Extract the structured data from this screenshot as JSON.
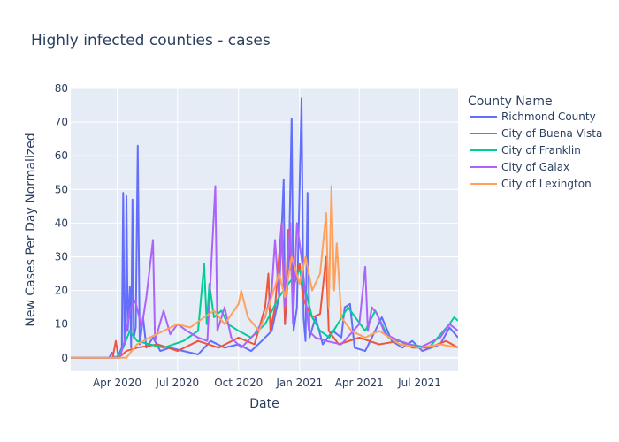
{
  "chart_data": {
    "type": "line",
    "title": "Highly infected counties - cases",
    "xlabel": "Date",
    "ylabel": "New Cases Per Day Normalized",
    "x_range": [
      "2020-01-22",
      "2021-08-28"
    ],
    "ylim": [
      -4,
      80
    ],
    "y_ticks": [
      0,
      10,
      20,
      30,
      40,
      50,
      60,
      70,
      80
    ],
    "x_ticks": [
      {
        "date": "2020-04-01",
        "label": "Apr 2020"
      },
      {
        "date": "2020-07-01",
        "label": "Jul 2020"
      },
      {
        "date": "2020-10-01",
        "label": "Oct 2020"
      },
      {
        "date": "2021-01-01",
        "label": "Jan 2021"
      },
      {
        "date": "2021-04-01",
        "label": "Apr 2021"
      },
      {
        "date": "2021-07-01",
        "label": "Jul 2021"
      }
    ],
    "grid": true,
    "legend": {
      "title": "County Name",
      "placement": "right"
    },
    "series": [
      {
        "name": "Richmond County",
        "color": "#636efa",
        "points": [
          [
            "2020-01-22",
            0
          ],
          [
            "2020-03-20",
            0
          ],
          [
            "2020-03-24",
            1.5
          ],
          [
            "2020-03-28",
            0
          ],
          [
            "2020-04-02",
            0.5
          ],
          [
            "2020-04-08",
            3
          ],
          [
            "2020-04-10",
            49
          ],
          [
            "2020-04-12",
            4
          ],
          [
            "2020-04-14",
            15
          ],
          [
            "2020-04-15",
            48
          ],
          [
            "2020-04-17",
            8
          ],
          [
            "2020-04-20",
            21
          ],
          [
            "2020-04-22",
            3
          ],
          [
            "2020-04-24",
            47
          ],
          [
            "2020-04-26",
            6
          ],
          [
            "2020-04-29",
            9
          ],
          [
            "2020-05-02",
            63
          ],
          [
            "2020-05-05",
            4
          ],
          [
            "2020-05-10",
            12
          ],
          [
            "2020-05-15",
            3
          ],
          [
            "2020-05-25",
            6
          ],
          [
            "2020-06-05",
            2
          ],
          [
            "2020-06-20",
            3
          ],
          [
            "2020-07-10",
            2
          ],
          [
            "2020-08-01",
            1
          ],
          [
            "2020-08-20",
            5
          ],
          [
            "2020-09-10",
            3
          ],
          [
            "2020-10-01",
            4
          ],
          [
            "2020-10-20",
            2
          ],
          [
            "2020-11-05",
            5
          ],
          [
            "2020-11-20",
            8
          ],
          [
            "2020-12-01",
            18
          ],
          [
            "2020-12-08",
            53
          ],
          [
            "2020-12-10",
            10
          ],
          [
            "2020-12-16",
            30
          ],
          [
            "2020-12-20",
            71
          ],
          [
            "2020-12-23",
            8
          ],
          [
            "2020-12-28",
            15
          ],
          [
            "2021-01-04",
            77
          ],
          [
            "2021-01-07",
            12
          ],
          [
            "2021-01-10",
            5
          ],
          [
            "2021-01-13",
            49
          ],
          [
            "2021-01-16",
            6
          ],
          [
            "2021-01-25",
            12
          ],
          [
            "2021-02-05",
            4
          ],
          [
            "2021-02-20",
            8
          ],
          [
            "2021-03-05",
            6
          ],
          [
            "2021-03-10",
            15
          ],
          [
            "2021-03-18",
            16
          ],
          [
            "2021-03-25",
            3
          ],
          [
            "2021-04-10",
            2
          ],
          [
            "2021-05-05",
            12
          ],
          [
            "2021-05-20",
            5
          ],
          [
            "2021-06-05",
            3
          ],
          [
            "2021-06-20",
            5
          ],
          [
            "2021-07-05",
            2
          ],
          [
            "2021-08-01",
            4
          ],
          [
            "2021-08-15",
            9
          ],
          [
            "2021-08-28",
            6
          ]
        ]
      },
      {
        "name": "City of Buena Vista",
        "color": "#ef553b",
        "points": [
          [
            "2020-01-22",
            0
          ],
          [
            "2020-03-25",
            0
          ],
          [
            "2020-03-30",
            5
          ],
          [
            "2020-04-03",
            0
          ],
          [
            "2020-04-15",
            2
          ],
          [
            "2020-05-01",
            3
          ],
          [
            "2020-06-01",
            4
          ],
          [
            "2020-07-01",
            2
          ],
          [
            "2020-08-01",
            5
          ],
          [
            "2020-09-01",
            3
          ],
          [
            "2020-10-01",
            6
          ],
          [
            "2020-10-25",
            4
          ],
          [
            "2020-11-10",
            15
          ],
          [
            "2020-11-15",
            25
          ],
          [
            "2020-11-18",
            8
          ],
          [
            "2020-11-25",
            15
          ],
          [
            "2020-12-05",
            40
          ],
          [
            "2020-12-10",
            10
          ],
          [
            "2020-12-15",
            38
          ],
          [
            "2020-12-22",
            20
          ],
          [
            "2021-01-01",
            28
          ],
          [
            "2021-01-06",
            18
          ],
          [
            "2021-01-12",
            15
          ],
          [
            "2021-01-20",
            12
          ],
          [
            "2021-02-01",
            13
          ],
          [
            "2021-02-10",
            30
          ],
          [
            "2021-02-14",
            8
          ],
          [
            "2021-03-01",
            4
          ],
          [
            "2021-04-01",
            6
          ],
          [
            "2021-05-01",
            4
          ],
          [
            "2021-06-01",
            5
          ],
          [
            "2021-06-20",
            3
          ],
          [
            "2021-07-15",
            3
          ],
          [
            "2021-08-10",
            5
          ],
          [
            "2021-08-28",
            3
          ]
        ]
      },
      {
        "name": "City of Franklin",
        "color": "#00cc96",
        "points": [
          [
            "2020-01-22",
            0
          ],
          [
            "2020-04-01",
            0
          ],
          [
            "2020-04-10",
            3
          ],
          [
            "2020-04-20",
            8
          ],
          [
            "2020-05-01",
            5
          ],
          [
            "2020-05-20",
            4
          ],
          [
            "2020-06-10",
            3
          ],
          [
            "2020-07-10",
            5
          ],
          [
            "2020-08-01",
            8
          ],
          [
            "2020-08-10",
            28
          ],
          [
            "2020-08-14",
            10
          ],
          [
            "2020-08-18",
            22
          ],
          [
            "2020-08-25",
            12
          ],
          [
            "2020-09-05",
            14
          ],
          [
            "2020-09-15",
            10
          ],
          [
            "2020-10-01",
            8
          ],
          [
            "2020-10-20",
            6
          ],
          [
            "2020-11-10",
            10
          ],
          [
            "2020-12-01",
            18
          ],
          [
            "2020-12-15",
            22
          ],
          [
            "2021-01-01",
            26
          ],
          [
            "2021-01-10",
            20
          ],
          [
            "2021-01-20",
            12
          ],
          [
            "2021-02-01",
            8
          ],
          [
            "2021-02-15",
            6
          ],
          [
            "2021-03-15",
            15
          ],
          [
            "2021-04-10",
            8
          ],
          [
            "2021-04-25",
            14
          ],
          [
            "2021-05-15",
            6
          ],
          [
            "2021-06-15",
            4
          ],
          [
            "2021-07-15",
            3
          ],
          [
            "2021-08-15",
            10
          ],
          [
            "2021-08-22",
            12
          ],
          [
            "2021-08-28",
            11
          ]
        ]
      },
      {
        "name": "City of Galax",
        "color": "#ab63fa",
        "points": [
          [
            "2020-01-22",
            0
          ],
          [
            "2020-04-05",
            0
          ],
          [
            "2020-04-12",
            5
          ],
          [
            "2020-04-20",
            14
          ],
          [
            "2020-04-28",
            17
          ],
          [
            "2020-05-08",
            9
          ],
          [
            "2020-05-15",
            18
          ],
          [
            "2020-05-25",
            35
          ],
          [
            "2020-05-28",
            5
          ],
          [
            "2020-06-10",
            14
          ],
          [
            "2020-06-20",
            7
          ],
          [
            "2020-07-01",
            10
          ],
          [
            "2020-07-15",
            8
          ],
          [
            "2020-08-01",
            6
          ],
          [
            "2020-08-15",
            5
          ],
          [
            "2020-08-27",
            51
          ],
          [
            "2020-08-30",
            8
          ],
          [
            "2020-09-10",
            15
          ],
          [
            "2020-09-20",
            6
          ],
          [
            "2020-10-05",
            3
          ],
          [
            "2020-10-25",
            7
          ],
          [
            "2020-11-10",
            12
          ],
          [
            "2020-11-20",
            20
          ],
          [
            "2020-11-25",
            35
          ],
          [
            "2020-12-01",
            18
          ],
          [
            "2020-12-05",
            40
          ],
          [
            "2020-12-10",
            15
          ],
          [
            "2020-12-18",
            40
          ],
          [
            "2020-12-22",
            10
          ],
          [
            "2020-12-28",
            40
          ],
          [
            "2021-01-05",
            28
          ],
          [
            "2021-01-15",
            8
          ],
          [
            "2021-01-25",
            6
          ],
          [
            "2021-02-10",
            5
          ],
          [
            "2021-03-05",
            4
          ],
          [
            "2021-04-01",
            10
          ],
          [
            "2021-04-10",
            27
          ],
          [
            "2021-04-14",
            8
          ],
          [
            "2021-04-20",
            15
          ],
          [
            "2021-04-28",
            13
          ],
          [
            "2021-05-10",
            7
          ],
          [
            "2021-06-01",
            5
          ],
          [
            "2021-07-01",
            3
          ],
          [
            "2021-08-01",
            6
          ],
          [
            "2021-08-15",
            10
          ],
          [
            "2021-08-28",
            8
          ]
        ]
      },
      {
        "name": "City of Lexington",
        "color": "#ffa15a",
        "points": [
          [
            "2020-01-22",
            0
          ],
          [
            "2020-04-15",
            0
          ],
          [
            "2020-05-01",
            4
          ],
          [
            "2020-05-20",
            6
          ],
          [
            "2020-06-10",
            8
          ],
          [
            "2020-07-01",
            10
          ],
          [
            "2020-07-20",
            9
          ],
          [
            "2020-08-10",
            12
          ],
          [
            "2020-08-25",
            14
          ],
          [
            "2020-09-10",
            10
          ],
          [
            "2020-10-01",
            16
          ],
          [
            "2020-10-05",
            20
          ],
          [
            "2020-10-15",
            12
          ],
          [
            "2020-11-01",
            8
          ],
          [
            "2020-11-15",
            15
          ],
          [
            "2020-12-01",
            25
          ],
          [
            "2020-12-10",
            18
          ],
          [
            "2020-12-20",
            30
          ],
          [
            "2021-01-01",
            22
          ],
          [
            "2021-01-10",
            30
          ],
          [
            "2021-01-20",
            20
          ],
          [
            "2021-02-01",
            25
          ],
          [
            "2021-02-10",
            43
          ],
          [
            "2021-02-14",
            15
          ],
          [
            "2021-02-18",
            51
          ],
          [
            "2021-02-22",
            20
          ],
          [
            "2021-02-26",
            34
          ],
          [
            "2021-03-05",
            12
          ],
          [
            "2021-03-20",
            8
          ],
          [
            "2021-04-10",
            6
          ],
          [
            "2021-05-01",
            8
          ],
          [
            "2021-06-01",
            4
          ],
          [
            "2021-07-01",
            3
          ],
          [
            "2021-08-01",
            4
          ],
          [
            "2021-08-28",
            3
          ]
        ]
      }
    ]
  }
}
